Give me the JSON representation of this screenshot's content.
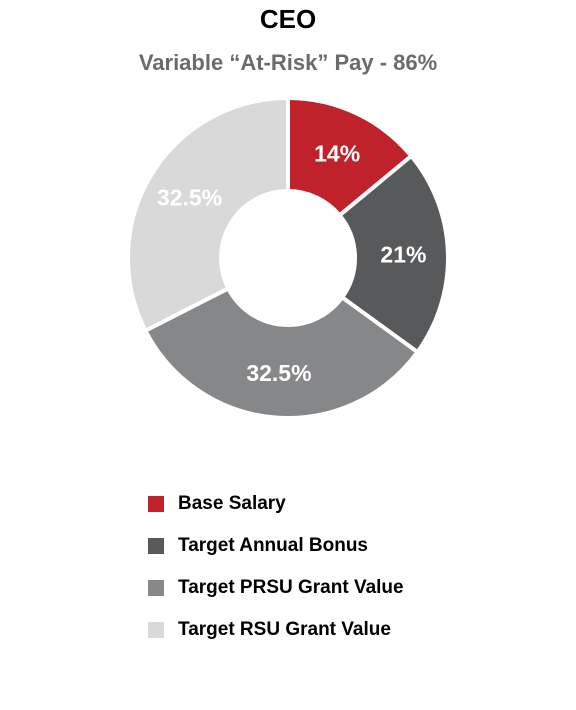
{
  "header": {
    "title": "CEO",
    "subtitle": "Variable “At-Risk” Pay - 86%"
  },
  "chart_data": {
    "type": "pie",
    "title": "CEO",
    "subtitle": "Variable “At-Risk” Pay - 86%",
    "categories": [
      "Base Salary",
      "Target Annual Bonus",
      "Target PRSU Grant Value",
      "Target RSU Grant Value"
    ],
    "values": [
      14,
      21,
      32.5,
      32.5
    ],
    "data_labels": [
      "14%",
      "21%",
      "32.5%",
      "32.5%"
    ],
    "colors": [
      "#c0222b",
      "#58595b",
      "#868789",
      "#d9d9da"
    ],
    "label_colors": [
      "#ffffff",
      "#ffffff",
      "#ffffff",
      "#ffffff"
    ],
    "donut": true,
    "legend_position": "bottom"
  }
}
